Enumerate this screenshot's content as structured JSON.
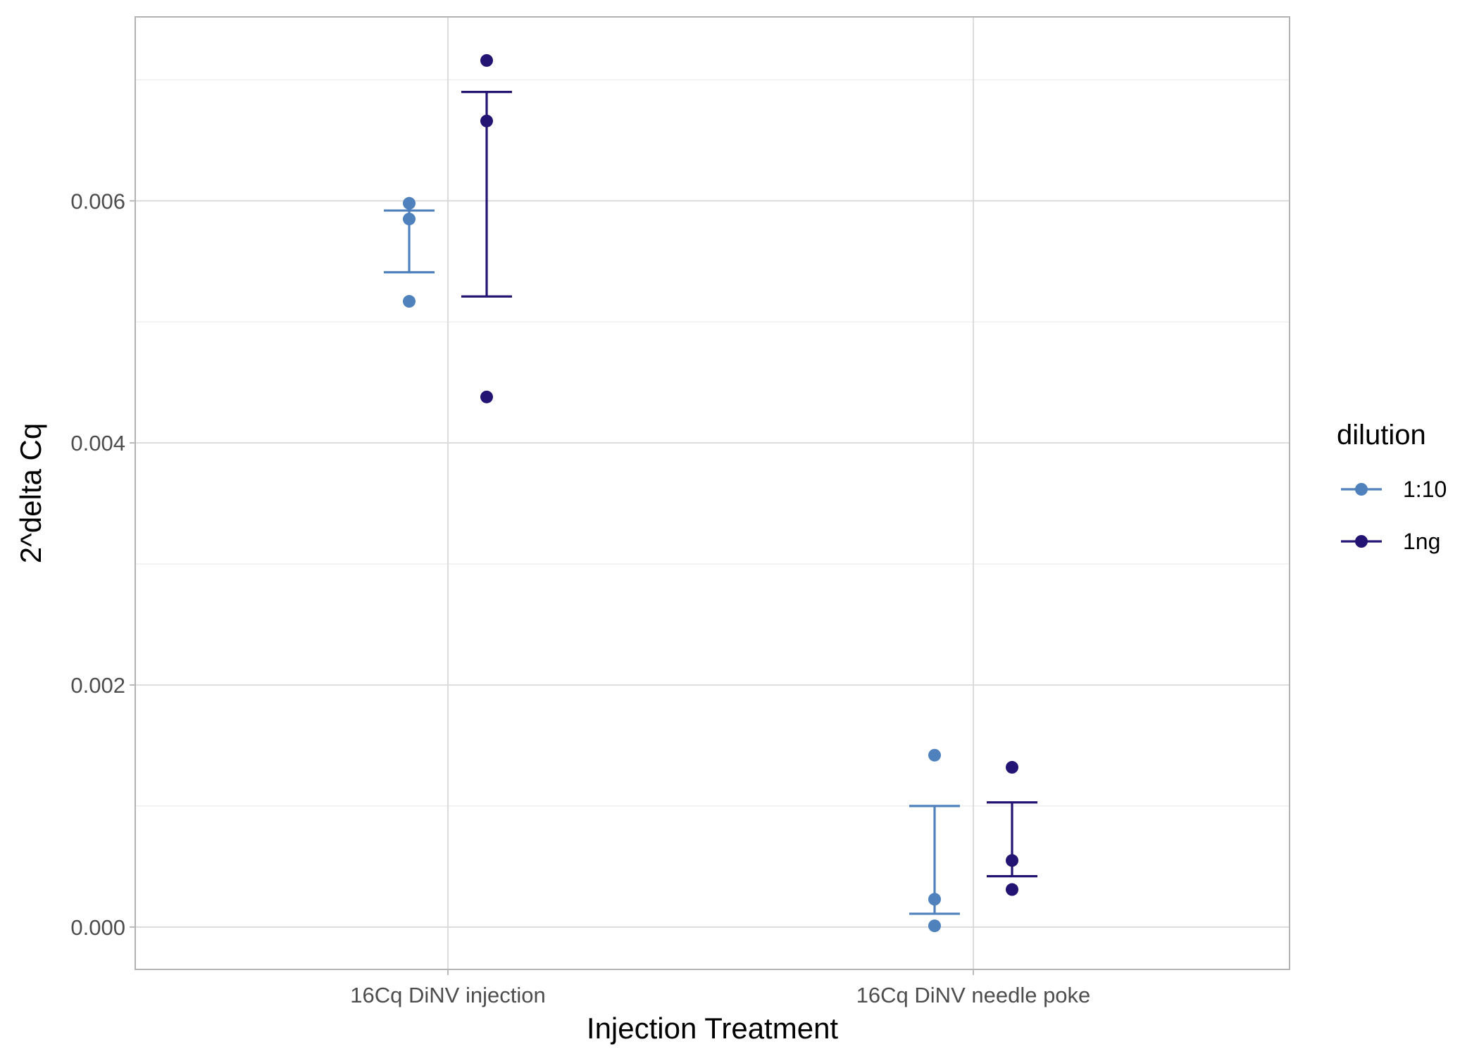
{
  "chart_data": {
    "type": "scatter",
    "title": "",
    "xlabel": "Injection Treatment",
    "ylabel": "2^delta Cq",
    "categories": [
      "16Cq DiNV injection",
      "16Cq DiNV needle poke"
    ],
    "ylim": [
      -0.00035,
      0.00752
    ],
    "yticks": [
      0.0,
      0.002,
      0.004,
      0.006
    ],
    "ytick_labels": [
      "0.000",
      "0.002",
      "0.004",
      "0.006"
    ],
    "grid": true,
    "legend": {
      "title": "dilution",
      "position": "right",
      "entries": [
        "1:10",
        "1ng"
      ]
    },
    "series": [
      {
        "name": "1:10",
        "color": "#4f81bd",
        "points": {
          "16Cq DiNV injection": [
            0.00598,
            0.00585,
            0.00517
          ],
          "16Cq DiNV needle poke": [
            0.00142,
            0.00023,
            1e-05
          ]
        },
        "error_bars": {
          "16Cq DiNV injection": [
            0.00541,
            0.00592
          ],
          "16Cq DiNV needle poke": [
            0.00011,
            0.001
          ]
        }
      },
      {
        "name": "1ng",
        "color": "#231473",
        "points": {
          "16Cq DiNV injection": [
            0.00716,
            0.00666,
            0.00438
          ],
          "16Cq DiNV needle poke": [
            0.00132,
            0.00055,
            0.00031
          ]
        },
        "error_bars": {
          "16Cq DiNV injection": [
            0.00521,
            0.0069
          ],
          "16Cq DiNV needle poke": [
            0.00042,
            0.00103
          ]
        }
      }
    ]
  }
}
